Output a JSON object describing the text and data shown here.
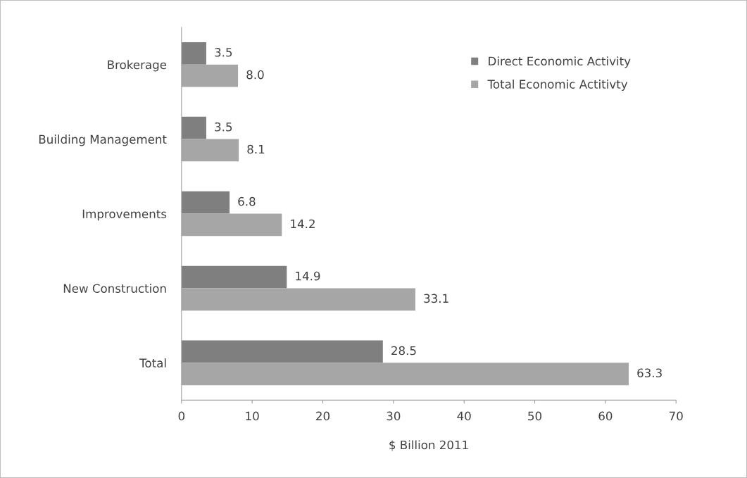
{
  "chart_data": {
    "type": "bar",
    "orientation": "horizontal",
    "categories": [
      "Brokerage",
      "Building Management",
      "Improvements",
      "New Construction",
      "Total"
    ],
    "series": [
      {
        "name": "Direct Economic Activity",
        "color": "#7f7f7f",
        "values": [
          3.5,
          3.5,
          6.8,
          14.9,
          28.5
        ],
        "value_labels": [
          "3.5",
          "3.5",
          "6.8",
          "14.9",
          "28.5"
        ]
      },
      {
        "name": "Total Economic Actitivty",
        "color": "#a6a6a6",
        "values": [
          8.0,
          8.1,
          14.2,
          33.1,
          63.3
        ],
        "value_labels": [
          "8.0",
          "8.1",
          "14.2",
          "33.1",
          "63.3"
        ]
      }
    ],
    "xlabel": "$ Billion 2011",
    "xlim": [
      0,
      70
    ],
    "xticks": [
      0,
      10,
      20,
      30,
      40,
      50,
      60,
      70
    ],
    "legend": "top right",
    "grid": false
  }
}
